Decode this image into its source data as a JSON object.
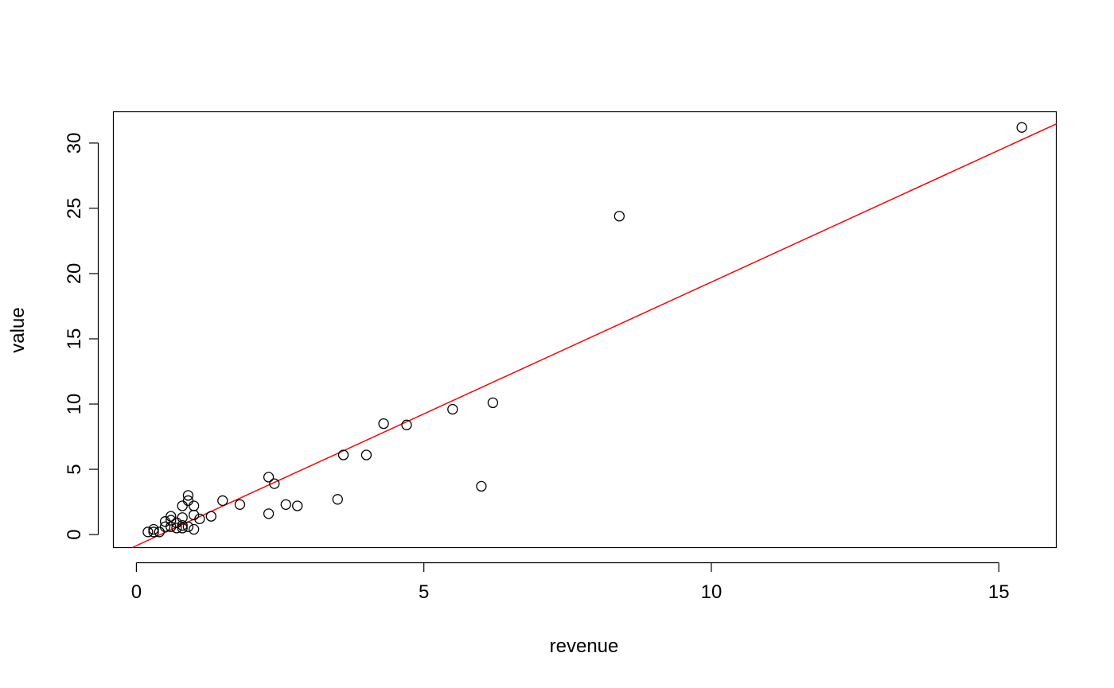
{
  "chart_data": {
    "type": "scatter",
    "xlabel": "revenue",
    "ylabel": "value",
    "xlim": [
      -0.4,
      16
    ],
    "ylim": [
      -1,
      32.4
    ],
    "x_ticks": [
      0,
      5,
      10,
      15
    ],
    "y_ticks": [
      0,
      5,
      10,
      15,
      20,
      25,
      30
    ],
    "x_tick_labels": [
      "0",
      "5",
      "10",
      "15"
    ],
    "y_tick_labels": [
      "0",
      "5",
      "10",
      "15",
      "20",
      "25",
      "30"
    ],
    "grid": false,
    "colors": {
      "points": "#000000",
      "fit_line": "#ff0000",
      "axes": "#000000"
    },
    "points": [
      {
        "x": 15.4,
        "y": 31.2
      },
      {
        "x": 8.4,
        "y": 24.4
      },
      {
        "x": 6.2,
        "y": 10.1
      },
      {
        "x": 6.0,
        "y": 3.7
      },
      {
        "x": 5.5,
        "y": 9.6
      },
      {
        "x": 4.7,
        "y": 8.4
      },
      {
        "x": 4.3,
        "y": 8.5
      },
      {
        "x": 4.0,
        "y": 6.1
      },
      {
        "x": 3.6,
        "y": 6.1
      },
      {
        "x": 3.5,
        "y": 2.7
      },
      {
        "x": 2.8,
        "y": 2.2
      },
      {
        "x": 2.6,
        "y": 2.3
      },
      {
        "x": 2.4,
        "y": 3.9
      },
      {
        "x": 2.3,
        "y": 4.4
      },
      {
        "x": 2.3,
        "y": 1.6
      },
      {
        "x": 1.8,
        "y": 2.3
      },
      {
        "x": 1.5,
        "y": 2.6
      },
      {
        "x": 1.3,
        "y": 1.4
      },
      {
        "x": 1.1,
        "y": 1.2
      },
      {
        "x": 1.0,
        "y": 2.2
      },
      {
        "x": 1.0,
        "y": 1.5
      },
      {
        "x": 1.0,
        "y": 0.4
      },
      {
        "x": 0.9,
        "y": 3.0
      },
      {
        "x": 0.9,
        "y": 2.6
      },
      {
        "x": 0.9,
        "y": 0.6
      },
      {
        "x": 0.8,
        "y": 2.2
      },
      {
        "x": 0.8,
        "y": 1.3
      },
      {
        "x": 0.8,
        "y": 0.7
      },
      {
        "x": 0.8,
        "y": 0.5
      },
      {
        "x": 0.7,
        "y": 0.9
      },
      {
        "x": 0.7,
        "y": 0.5
      },
      {
        "x": 0.6,
        "y": 1.4
      },
      {
        "x": 0.6,
        "y": 1.1
      },
      {
        "x": 0.6,
        "y": 0.6
      },
      {
        "x": 0.5,
        "y": 1.0
      },
      {
        "x": 0.5,
        "y": 0.6
      },
      {
        "x": 0.4,
        "y": 0.2
      },
      {
        "x": 0.3,
        "y": 0.4
      },
      {
        "x": 0.3,
        "y": 0.2
      },
      {
        "x": 0.2,
        "y": 0.2
      }
    ],
    "fit_line": {
      "intercept": -0.85,
      "slope": 2.02
    }
  }
}
